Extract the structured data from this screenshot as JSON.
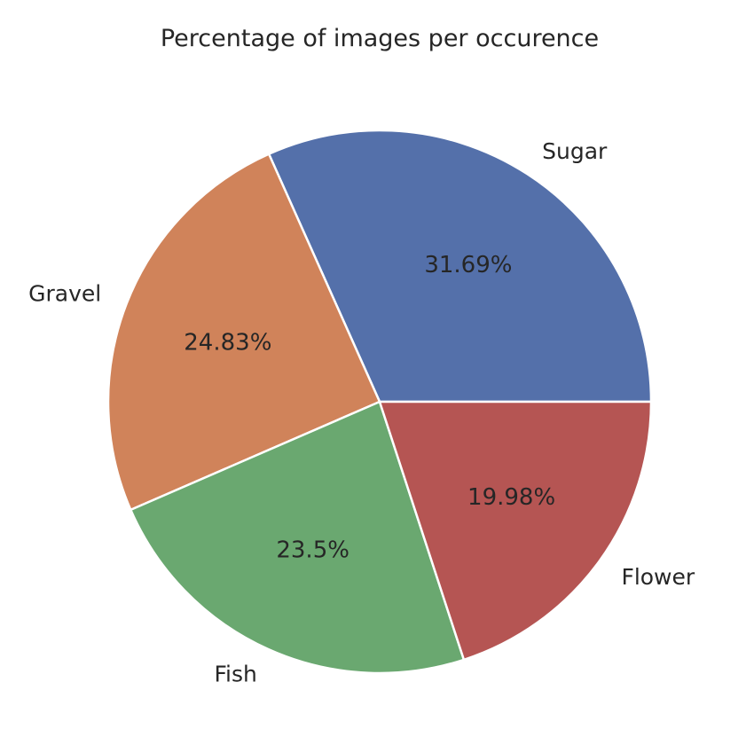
{
  "chart_data": {
    "type": "pie",
    "title": "Percentage of images per occurence",
    "categories": [
      "Sugar",
      "Gravel",
      "Fish",
      "Flower"
    ],
    "values": [
      31.69,
      24.83,
      23.5,
      19.98
    ],
    "value_labels": [
      "31.69%",
      "24.83%",
      "23.5%",
      "19.98%"
    ],
    "colors": [
      "#5470aa",
      "#d0835a",
      "#6aa870",
      "#b55553"
    ],
    "start_angle_deg": 0,
    "direction": "counterclockwise",
    "legend": "none"
  }
}
